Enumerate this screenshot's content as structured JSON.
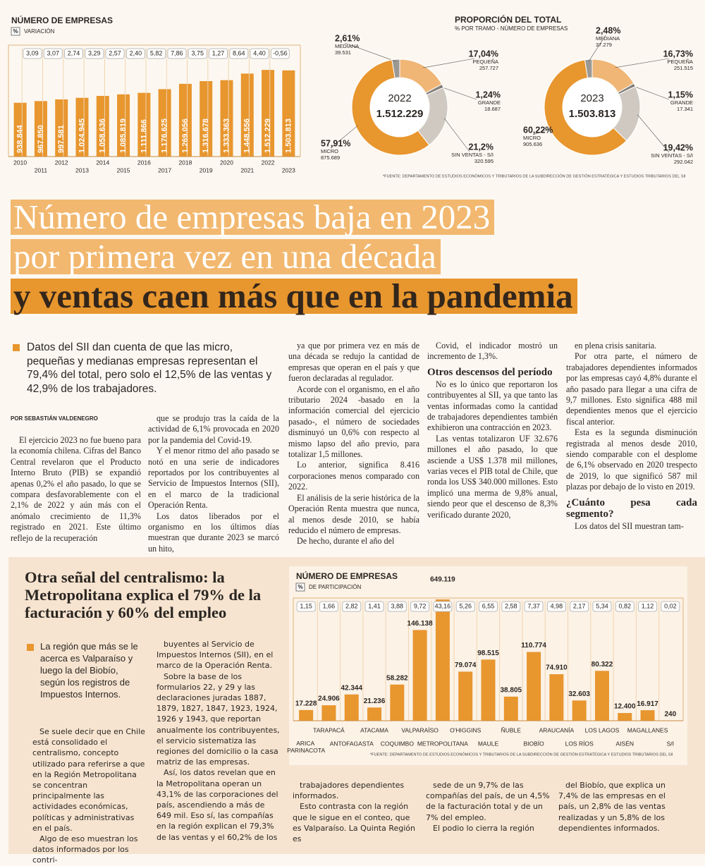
{
  "chart_data": [
    {
      "type": "bar",
      "title": "NÚMERO DE EMPRESAS",
      "badge": "%",
      "subtitle": "VARIACIÓN",
      "categories": [
        "2010",
        "2011",
        "2012",
        "2013",
        "2014",
        "2015",
        "2016",
        "2017",
        "2018",
        "2019",
        "2020",
        "2021",
        "2022",
        "2023"
      ],
      "values": [
        938844,
        967850,
        997581,
        1024945,
        1058636,
        1085819,
        1111866,
        1176625,
        1269056,
        1316678,
        1333363,
        1448556,
        1512229,
        1503813
      ],
      "value_labels": [
        "938.844",
        "967.850",
        "997.581",
        "1.024.945",
        "1.058.636",
        "1.085.819",
        "1.111.866",
        "1.176.625",
        "1.269.056",
        "1.316.678",
        "1.333.363",
        "1.448.556",
        "1.512.229",
        "1.503.813"
      ],
      "variation": [
        null,
        3.09,
        3.07,
        2.74,
        3.29,
        2.57,
        2.4,
        5.82,
        7.86,
        3.75,
        1.27,
        8.64,
        4.4,
        -0.56
      ],
      "variation_labels": [
        null,
        "3,09",
        "3,07",
        "2,74",
        "3,29",
        "2,57",
        "2,40",
        "5,82",
        "7,86",
        "3,75",
        "1,27",
        "8,64",
        "4,40",
        "-0,56"
      ],
      "color": "#e8962e",
      "ylim": [
        0,
        1600000
      ]
    },
    {
      "type": "pie",
      "title": "PROPORCIÓN DEL TOTAL",
      "subtitle": "% POR TRAMO - NÚMERO DE EMPRESAS",
      "source": "*FUENTE: DEPARTAMENTO DE ESTUDIOS ECONÓMICOS Y TRIBUTARIOS DE LA SUBDIRECCIÓN DE GESTIÓN ESTRATÉGICA Y ESTUDIOS TRIBUTARIOS DEL SII",
      "categories": [
        "MEDIANA",
        "PEQUEÑA",
        "GRANDE",
        "SIN VENTAS - S/I",
        "MICRO"
      ],
      "colors": [
        "#9b9994",
        "#f0b676",
        "#85827d",
        "#cfc9c1",
        "#e8962e"
      ],
      "panels": [
        {
          "year": "2022",
          "total": 1512229,
          "total_label": "1.512.229",
          "values": [
            2.61,
            17.04,
            1.24,
            21.2,
            57.91
          ],
          "value_labels": [
            "2,61%",
            "17,04%",
            "1,24%",
            "21,2%",
            "57,91%"
          ],
          "counts": [
            39531,
            257727,
            18687,
            320595,
            875689
          ],
          "count_labels": [
            "39.531",
            "257.727",
            "18.687",
            "320.595",
            "875.689"
          ]
        },
        {
          "year": "2023",
          "total": 1503813,
          "total_label": "1.503.813",
          "values": [
            2.48,
            16.73,
            1.15,
            19.42,
            60.22
          ],
          "value_labels": [
            "2,48%",
            "16,73%",
            "1,15%",
            "19,42%",
            "60,22%"
          ],
          "counts": [
            37279,
            251515,
            17341,
            292042,
            905636
          ],
          "count_labels": [
            "37.279",
            "251.515",
            "17.341",
            "292.042",
            "905.636"
          ]
        }
      ]
    },
    {
      "type": "bar",
      "title": "NÚMERO DE EMPRESAS",
      "badge": "%",
      "subtitle": "DE PARTICIPACIÓN",
      "source": "*FUENTE: DEPARTAMENTO DE ESTUDIOS ECONÓMICOS Y TRIBUTARIOS DE LA SUBDIRECCIÓN DE GESTIÓN ESTRATÉGICA Y ESTUDIOS TRIBUTARIOS DEL SII",
      "categories": [
        "ARICA PARINACOTA",
        "TARAPACÁ",
        "ANTOFAGASTA",
        "ATACAMA",
        "COQUIMBO",
        "VALPARAÍSO",
        "METROPOLITANA",
        "O'HIGGINS",
        "MAULE",
        "ÑUBLE",
        "BIOBÍO",
        "ARAUCANÍA",
        "LOS RÍOS",
        "LOS LAGOS",
        "AISÉN",
        "MAGALLANES",
        "S/I"
      ],
      "values": [
        17228,
        24906,
        42344,
        21236,
        58282,
        146138,
        649119,
        79074,
        98515,
        38805,
        110774,
        74910,
        32603,
        80322,
        12400,
        16917,
        240
      ],
      "value_labels": [
        "17.228",
        "24.906",
        "42.344",
        "21.236",
        "58.282",
        "146.138",
        "649.119",
        "79.074",
        "98.515",
        "38.805",
        "110.774",
        "74.910",
        "32.603",
        "80.322",
        "12.400",
        "16.917",
        "240"
      ],
      "share": [
        1.15,
        1.66,
        2.82,
        1.41,
        3.88,
        9.72,
        43.16,
        5.26,
        6.55,
        2.58,
        7.37,
        4.98,
        2.17,
        5.34,
        0.82,
        1.12,
        0.02
      ],
      "share_labels": [
        "1,15",
        "1,66",
        "2,82",
        "1,41",
        "3,88",
        "9,72",
        "43,16",
        "5,26",
        "6,55",
        "2,58",
        "7,37",
        "4,98",
        "2,17",
        "5,34",
        "0,82",
        "1,12",
        "0,02"
      ],
      "color": "#e8962e",
      "ylim": [
        0,
        175000
      ]
    }
  ],
  "headline": {
    "lines": [
      "Número de empresas baja en 2023",
      "por primera vez en una década",
      "y ventas caen más que en la pandemia"
    ]
  },
  "article": {
    "lead": "Datos del SII dan cuenta de que las micro, pequeñas y medianas empresas representan el 79,4% del total, pero solo el 12,5% de las ventas y 42,9% de los trabajadores.",
    "byline": "POR SEBASTIÁN VALDENEGRO",
    "columns": [
      [
        "El ejercicio 2023 no fue bueno para la economía chilena. Cifras del Banco Central revelaron que el Producto Interno Bruto (PIB) se expandió apenas 0,2% el año pasado, lo que se compara desfavorablemente con el 2,1% de 2022 y aún más con el anómalo crecimiento de 11,3% registrado en 2021. Este último reflejo de la recuperación"
      ],
      [
        "que se produjo tras la caída de la actividad de 6,1% provocada en 2020 por la pandemia del Covid-19.",
        "Y el menor ritmo del año pasado se notó en una serie de indicadores reportados por los contribuyentes al Servicio de Impuestos Internos (SII), en el marco de la tradicional Operación Renta.",
        "Los datos liberados por el organismo en los últimos días muestran que durante 2023 se marcó un hito,"
      ],
      [
        "ya que por primera vez en más de una década se redujo la cantidad de empresas que operan en el país y que fueron declaradas al regulador.",
        "Acorde con el organismo, en el año tributario 2024 -basado en la información comercial del ejercicio pasado-, el número de sociedades disminuyó un 0,6% con respecto al mismo lapso del año previo, para totalizar 1,5 millones.",
        "Lo anterior, significa 8.416 corporaciones menos comparado con 2022.",
        "El análisis de la serie histórica de la Operación Renta muestra que nunca, al menos desde 2010, se había reducido el número de empresas.",
        "De hecho, durante el año del"
      ],
      [
        "Covid, el indicador mostró un incremento de 1,3%.",
        {
          "subhead": "Otros descensos del período"
        },
        "No es lo único que reportaron los contribuyentes al SII, ya que tanto las ventas informadas como la cantidad de trabajadores dependientes también exhibieron una contracción en 2023.",
        "Las ventas totalizaron UF 32.676 millones el año pasado, lo que asciende a US$ 1.378 mil millones, varias veces el PIB total de Chile, que ronda los US$ 340.000 millones. Esto implicó una merma de 9,8% anual, siendo peor que el descenso de 8,3% verificado durante 2020,"
      ],
      [
        "en plena crisis sanitaria.",
        "Por otra parte, el número de trabajadores dependientes informados por las empresas cayó 4,8% durante el año pasado para llegar a una cifra de 9,7 millones. Esto significa 488 mil dependientes menos que el ejercicio fiscal anterior.",
        "Esta es la segunda disminución registrada al menos desde 2010, siendo comparable con el desplome de 6,1% observado en 2020 trespecto de 2019, lo que significó 587 mil plazas por debajo de lo visto en 2019.",
        {
          "subhead": "¿Cuánto pesa cada segmento?"
        },
        "Los datos del SII muestran tam-"
      ]
    ]
  },
  "box": {
    "title": "Otra señal del centralismo: la Metropolitana explica el 79% de la facturación y 60% del empleo",
    "lead": "La región que más se le acerca es Valparaíso y luego la del Biobío, según los registros de Impuestos Internos.",
    "columns": [
      [
        "Se suele decir que en Chile está consolidado el centralismo, concepto utilizado para referirse a que en la Región Metropolitana se concentran principalmente las actividades económicas, políticas y administrativas en el país.",
        "Algo de eso muestran los datos informados por los contri-"
      ],
      [
        "buyentes al Servicio de Impuestos Internos (SII), en el marco de la Operación Renta.",
        "Sobre la base de los formularios 22, y 29 y las declaraciones juradas 1887, 1879, 1827, 1847, 1923, 1924, 1926 y 1943, que reportan anualmente los contribuyentes, el servicio sistematiza las regiones del domicilio o la casa matriz de las empresas.",
        "Así, los datos revelan que en la Metropolitana operan un 43,1% de las corporaciones del país, ascendiendo a más de 649 mil. Eso sí, las compañías en la región explican el 79,3% de las ventas y el 60,2% de los"
      ],
      [
        "trabajadores dependientes informados.",
        "Esto contrasta con la región que le sigue en el conteo, que es Valparaíso. La Quinta Región es"
      ],
      [
        "sede de un 9,7% de las compañías del país, de un 4,5% de la facturación total y de un 7% del empleo.",
        "El podio lo cierra la región"
      ],
      [
        "del Biobío, que explica un 7,4% de las empresas en el país, un 2,8% de las ventas realizadas y un 5,8% de los dependientes informados."
      ]
    ]
  }
}
